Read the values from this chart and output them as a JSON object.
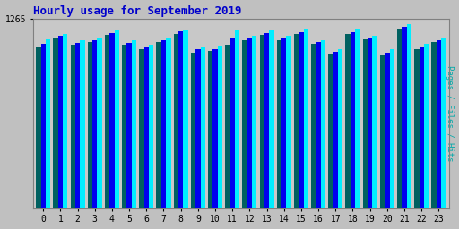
{
  "title": "Hourly usage for September 2019",
  "title_color": "#0000cc",
  "title_fontsize": 9,
  "hours": [
    0,
    1,
    2,
    3,
    4,
    5,
    6,
    7,
    8,
    9,
    10,
    11,
    12,
    13,
    14,
    15,
    16,
    17,
    18,
    19,
    20,
    21,
    22,
    23
  ],
  "pages": [
    1080,
    1140,
    1090,
    1110,
    1160,
    1090,
    1060,
    1110,
    1165,
    1040,
    1050,
    1090,
    1120,
    1160,
    1120,
    1165,
    1100,
    1030,
    1165,
    1130,
    1020,
    1200,
    1065,
    1110
  ],
  "files": [
    1100,
    1150,
    1105,
    1120,
    1170,
    1105,
    1075,
    1120,
    1180,
    1060,
    1065,
    1140,
    1135,
    1170,
    1135,
    1175,
    1110,
    1045,
    1175,
    1140,
    1040,
    1210,
    1080,
    1120
  ],
  "hits": [
    1130,
    1165,
    1120,
    1140,
    1185,
    1120,
    1090,
    1140,
    1190,
    1075,
    1085,
    1185,
    1155,
    1190,
    1155,
    1200,
    1125,
    1065,
    1200,
    1155,
    1060,
    1230,
    1100,
    1140
  ],
  "ymax": 1265,
  "ylabel": "Pages / Files / Hits",
  "bar_width": 0.28,
  "pages_color": "#006060",
  "files_color": "#0000ee",
  "hits_color": "#00eeff",
  "bg_color": "#c0c0c0",
  "plot_bg_color": "#c8c8c8",
  "grid_color": "#b0b0b0",
  "ylabel_color": "#00aaaa",
  "spine_color": "#808080"
}
